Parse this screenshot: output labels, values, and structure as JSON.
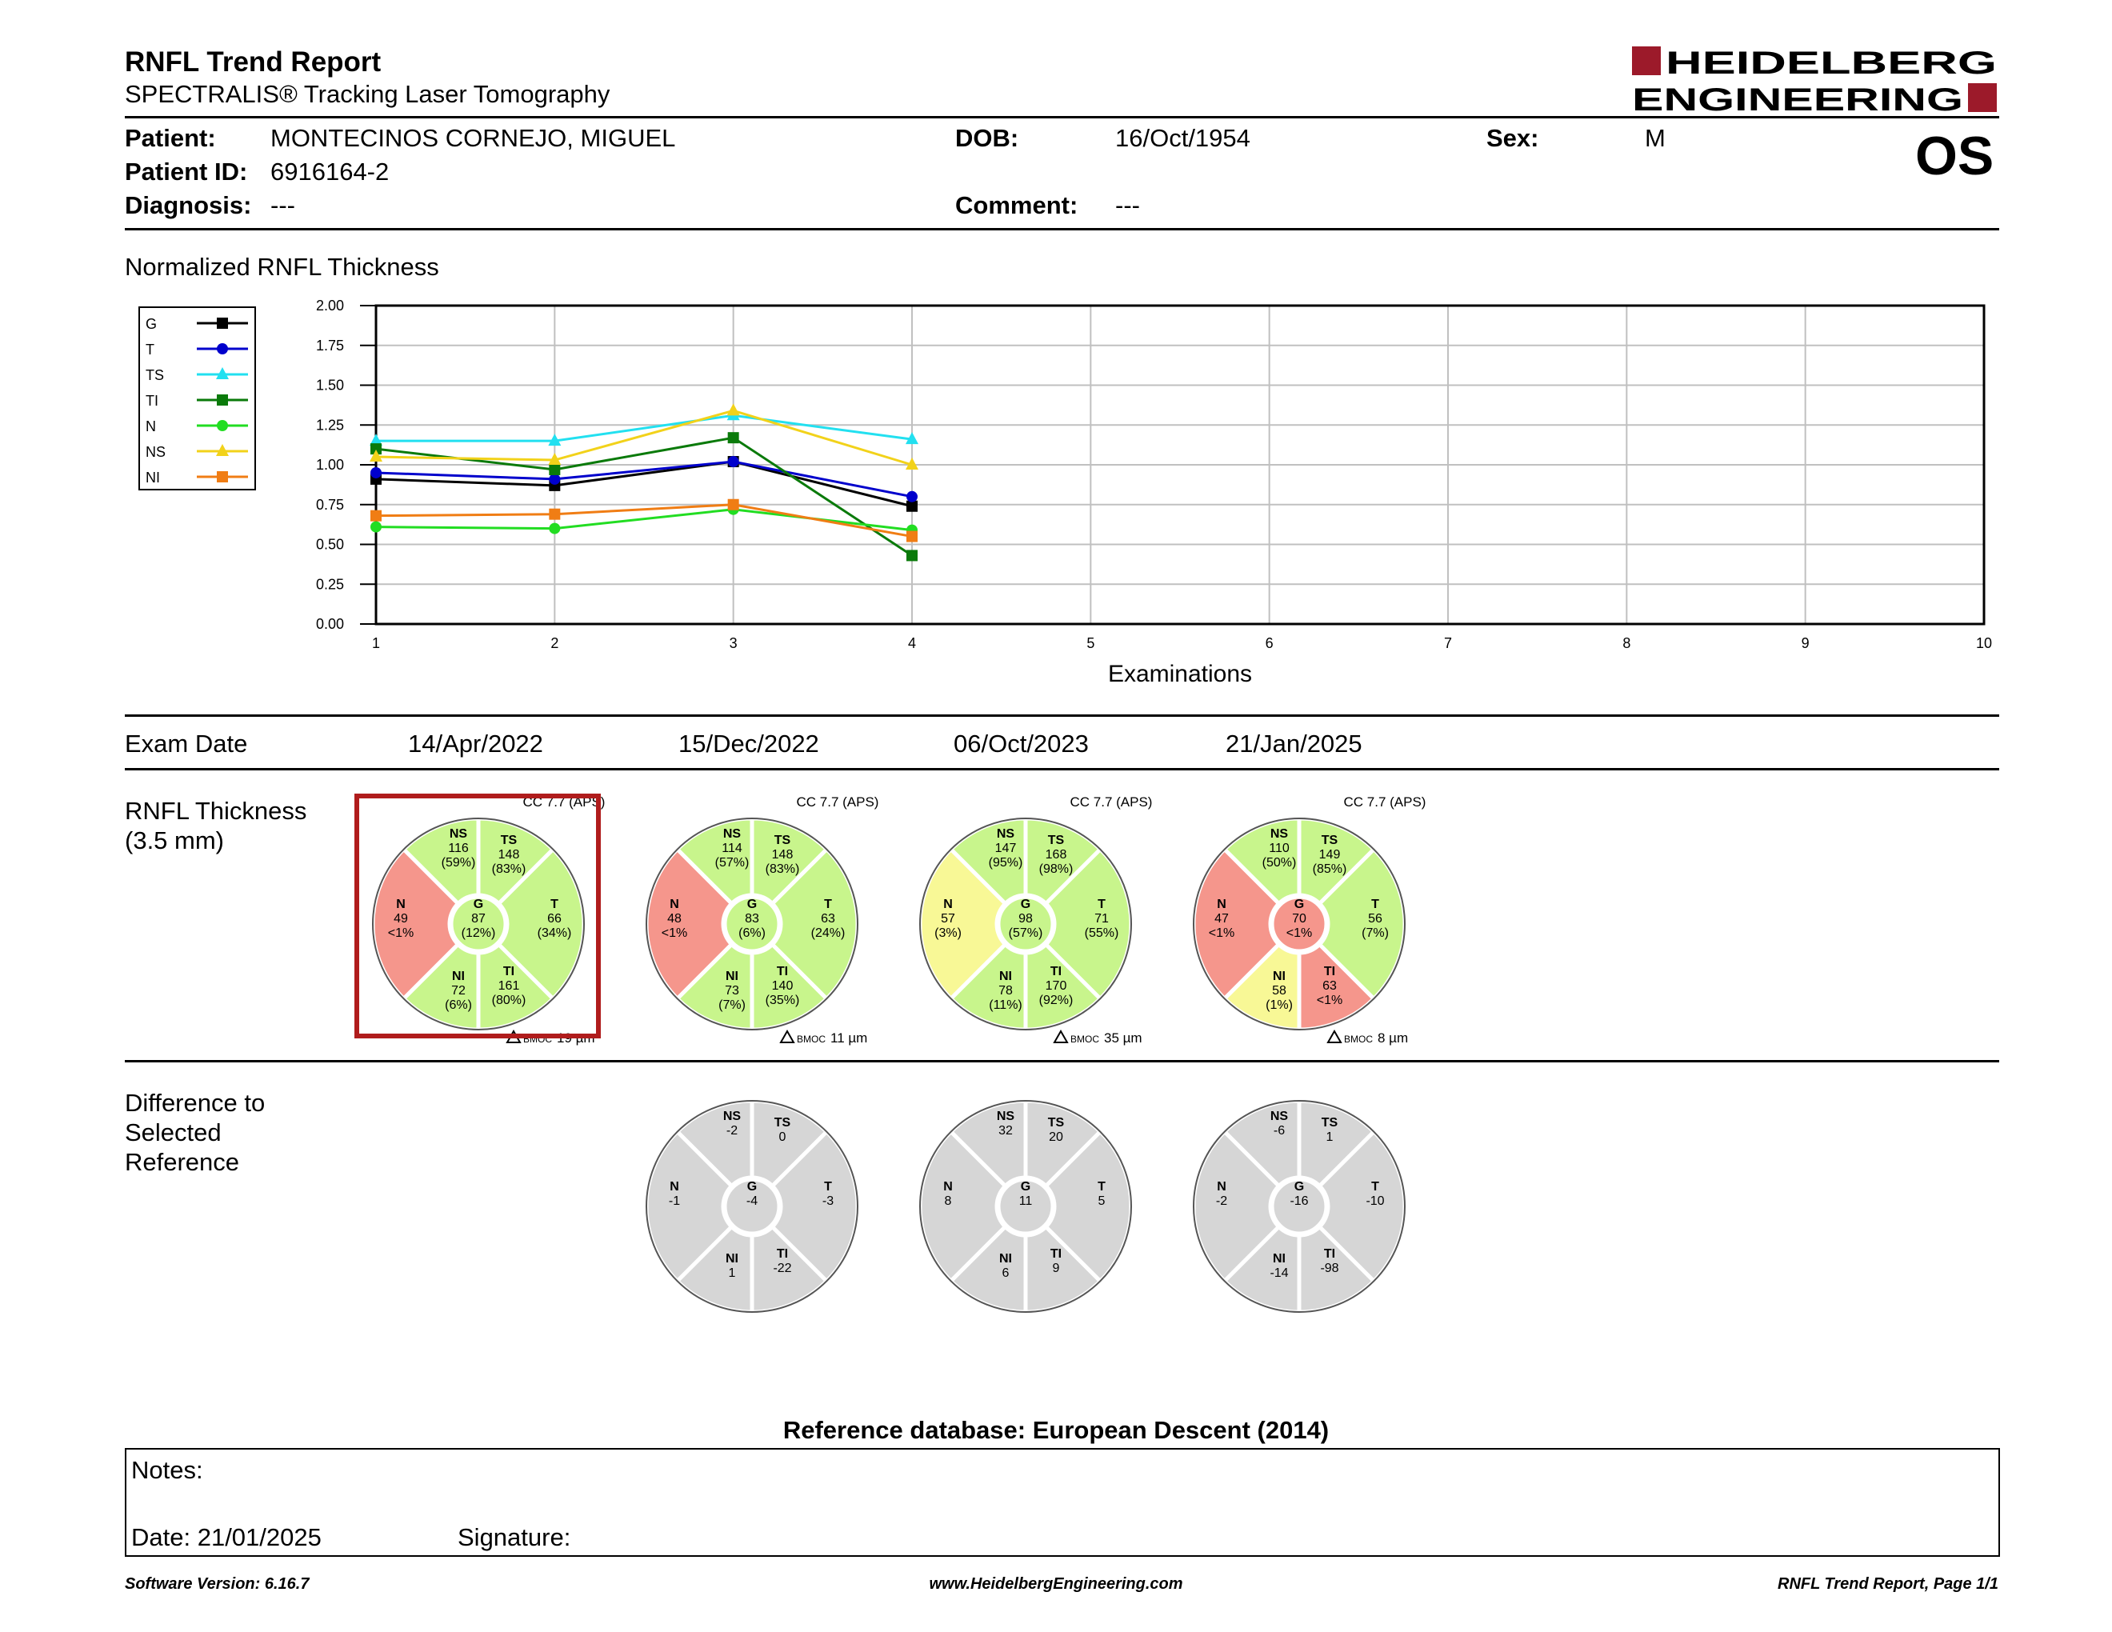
{
  "header": {
    "title": "RNFL Trend Report",
    "subtitle": "SPECTRALIS® Tracking Laser Tomography",
    "logo_line1": "HEIDELBERG",
    "logo_line2": "ENGINEERING",
    "eye": "OS"
  },
  "patient": {
    "patient_label": "Patient:",
    "patient_value": "MONTECINOS CORNEJO, MIGUEL",
    "dob_label": "DOB:",
    "dob_value": "16/Oct/1954",
    "sex_label": "Sex:",
    "sex_value": "M",
    "id_label": "Patient ID:",
    "id_value": "6916164-2",
    "diagnosis_label": "Diagnosis:",
    "diagnosis_value": "---",
    "comment_label": "Comment:",
    "comment_value": "---"
  },
  "chart_section_title": "Normalized RNFL Thickness",
  "chart_data": {
    "type": "line",
    "xlabel": "Examinations",
    "x_ticks": [
      "1",
      "2",
      "3",
      "4",
      "5",
      "6",
      "7",
      "8",
      "9",
      "10"
    ],
    "y_ticks": [
      "0.00",
      "0.25",
      "0.50",
      "0.75",
      "1.00",
      "1.25",
      "1.50",
      "1.75",
      "2.00"
    ],
    "xlim": [
      1,
      10
    ],
    "ylim": [
      0,
      2
    ],
    "grid": true,
    "legend_position": "left",
    "series": [
      {
        "name": "G",
        "color": "#000000",
        "marker": "square",
        "x": [
          1,
          2,
          3,
          4
        ],
        "values": [
          0.91,
          0.87,
          1.02,
          0.74
        ]
      },
      {
        "name": "T",
        "color": "#0000cc",
        "marker": "circle",
        "x": [
          1,
          2,
          3,
          4
        ],
        "values": [
          0.95,
          0.91,
          1.02,
          0.8
        ]
      },
      {
        "name": "TS",
        "color": "#22e0f0",
        "marker": "triangle",
        "x": [
          1,
          2,
          3,
          4
        ],
        "values": [
          1.15,
          1.15,
          1.31,
          1.16
        ]
      },
      {
        "name": "TI",
        "color": "#0a7a0a",
        "marker": "square",
        "x": [
          1,
          2,
          3,
          4
        ],
        "values": [
          1.1,
          0.97,
          1.17,
          0.43
        ]
      },
      {
        "name": "N",
        "color": "#22dd22",
        "marker": "circle",
        "x": [
          1,
          2,
          3,
          4
        ],
        "values": [
          0.61,
          0.6,
          0.72,
          0.59
        ]
      },
      {
        "name": "NS",
        "color": "#f2d21a",
        "marker": "triangle",
        "x": [
          1,
          2,
          3,
          4
        ],
        "values": [
          1.05,
          1.03,
          1.34,
          1.0
        ]
      },
      {
        "name": "NI",
        "color": "#f07d14",
        "marker": "square",
        "x": [
          1,
          2,
          3,
          4
        ],
        "values": [
          0.68,
          0.69,
          0.75,
          0.55
        ]
      }
    ]
  },
  "exam_date_label": "Exam Date",
  "exam_dates": [
    "14/Apr/2022",
    "15/Dec/2022",
    "06/Oct/2023",
    "21/Jan/2025"
  ],
  "rnfl_label_line1": "RNFL Thickness",
  "rnfl_label_line2": "(3.5 mm)",
  "colors": {
    "green": "#c8f58c",
    "yellow": "#f8f896",
    "red": "#f5968c",
    "gray": "#d6d6d6",
    "selected_border": "#b01c1c"
  },
  "rnfl_exams": [
    {
      "cc": "CC 7.7 (APS)",
      "bmoc": "19 µm",
      "selected": true,
      "sectors": {
        "NS": {
          "value": "116",
          "pct": "(59%)",
          "color": "green"
        },
        "TS": {
          "value": "148",
          "pct": "(83%)",
          "color": "green"
        },
        "T": {
          "value": "66",
          "pct": "(34%)",
          "color": "green"
        },
        "TI": {
          "value": "161",
          "pct": "(80%)",
          "color": "green"
        },
        "NI": {
          "value": "72",
          "pct": "(6%)",
          "color": "green"
        },
        "N": {
          "value": "49",
          "pct": "<1%",
          "color": "red"
        },
        "G": {
          "value": "87",
          "pct": "(12%)",
          "color": "green"
        }
      }
    },
    {
      "cc": "CC 7.7 (APS)",
      "bmoc": "11 µm",
      "selected": false,
      "sectors": {
        "NS": {
          "value": "114",
          "pct": "(57%)",
          "color": "green"
        },
        "TS": {
          "value": "148",
          "pct": "(83%)",
          "color": "green"
        },
        "T": {
          "value": "63",
          "pct": "(24%)",
          "color": "green"
        },
        "TI": {
          "value": "140",
          "pct": "(35%)",
          "color": "green"
        },
        "NI": {
          "value": "73",
          "pct": "(7%)",
          "color": "green"
        },
        "N": {
          "value": "48",
          "pct": "<1%",
          "color": "red"
        },
        "G": {
          "value": "83",
          "pct": "(6%)",
          "color": "green"
        }
      }
    },
    {
      "cc": "CC 7.7 (APS)",
      "bmoc": "35 µm",
      "selected": false,
      "sectors": {
        "NS": {
          "value": "147",
          "pct": "(95%)",
          "color": "green"
        },
        "TS": {
          "value": "168",
          "pct": "(98%)",
          "color": "green"
        },
        "T": {
          "value": "71",
          "pct": "(55%)",
          "color": "green"
        },
        "TI": {
          "value": "170",
          "pct": "(92%)",
          "color": "green"
        },
        "NI": {
          "value": "78",
          "pct": "(11%)",
          "color": "green"
        },
        "N": {
          "value": "57",
          "pct": "(3%)",
          "color": "yellow"
        },
        "G": {
          "value": "98",
          "pct": "(57%)",
          "color": "green"
        }
      }
    },
    {
      "cc": "CC 7.7 (APS)",
      "bmoc": "8 µm",
      "selected": false,
      "sectors": {
        "NS": {
          "value": "110",
          "pct": "(50%)",
          "color": "green"
        },
        "TS": {
          "value": "149",
          "pct": "(85%)",
          "color": "green"
        },
        "T": {
          "value": "56",
          "pct": "(7%)",
          "color": "green"
        },
        "TI": {
          "value": "63",
          "pct": "<1%",
          "color": "red"
        },
        "NI": {
          "value": "58",
          "pct": "(1%)",
          "color": "yellow"
        },
        "N": {
          "value": "47",
          "pct": "<1%",
          "color": "red"
        },
        "G": {
          "value": "70",
          "pct": "<1%",
          "color": "red"
        }
      }
    }
  ],
  "diff_label_line1": "Difference to",
  "diff_label_line2": "Selected",
  "diff_label_line3": "Reference",
  "diff_exams": [
    {
      "exam_index": 1,
      "sectors": {
        "NS": "-2",
        "TS": "0",
        "T": "-3",
        "TI": "-22",
        "NI": "1",
        "N": "-1",
        "G": "-4"
      }
    },
    {
      "exam_index": 2,
      "sectors": {
        "NS": "32",
        "TS": "20",
        "T": "5",
        "TI": "9",
        "NI": "6",
        "N": "8",
        "G": "11"
      }
    },
    {
      "exam_index": 3,
      "sectors": {
        "NS": "-6",
        "TS": "1",
        "T": "-10",
        "TI": "-98",
        "NI": "-14",
        "N": "-2",
        "G": "-16"
      }
    }
  ],
  "reference_db": "Reference database: European Descent (2014)",
  "notes": {
    "notes_label": "Notes:",
    "date_label": "Date: 21/01/2025",
    "signature_label": "Signature:"
  },
  "footer": {
    "software": "Software Version: 6.16.7",
    "url": "www.HeidelbergEngineering.com",
    "page": "RNFL Trend Report, Page 1/1"
  }
}
